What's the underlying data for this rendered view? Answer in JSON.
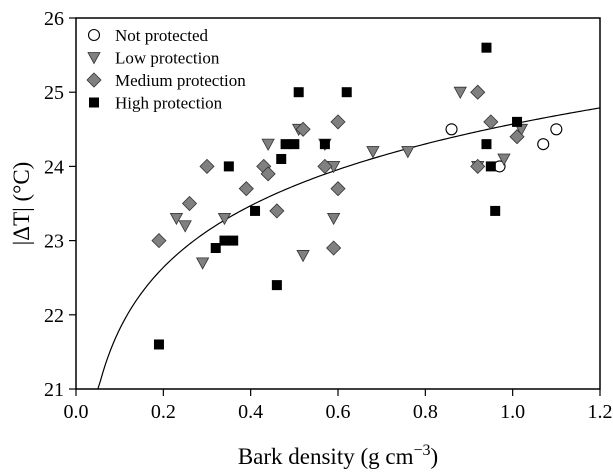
{
  "chart_data": {
    "type": "scatter",
    "xlabel_text": "Bark density (g cm",
    "xlabel_sup": "−3",
    "xlabel_close": ")",
    "ylabel": "|ΔT| (°C)",
    "xlim": [
      0.0,
      1.2
    ],
    "ylim": [
      21,
      26
    ],
    "xticks": [
      0.0,
      0.2,
      0.4,
      0.6,
      0.8,
      1.0,
      1.2
    ],
    "xtick_labels": [
      "0.0",
      "0.2",
      "0.4",
      "0.6",
      "0.8",
      "1.0",
      "1.2"
    ],
    "yticks": [
      21,
      22,
      23,
      24,
      25,
      26
    ],
    "ytick_labels": [
      "21",
      "22",
      "23",
      "24",
      "25",
      "26"
    ],
    "grid": false,
    "legend_position": "top-left",
    "series": [
      {
        "name": "Not protected",
        "marker": "open-circle",
        "color": "#000000",
        "points": [
          [
            0.86,
            24.5
          ],
          [
            0.97,
            24.0
          ],
          [
            1.07,
            24.3
          ],
          [
            1.1,
            24.5
          ]
        ]
      },
      {
        "name": "Low protection",
        "marker": "triangle-down",
        "color": "#808080",
        "points": [
          [
            0.23,
            23.3
          ],
          [
            0.25,
            23.2
          ],
          [
            0.29,
            22.7
          ],
          [
            0.34,
            23.3
          ],
          [
            0.44,
            24.3
          ],
          [
            0.51,
            24.5
          ],
          [
            0.52,
            22.8
          ],
          [
            0.57,
            24.3
          ],
          [
            0.59,
            23.3
          ],
          [
            0.59,
            24.0
          ],
          [
            0.68,
            24.2
          ],
          [
            0.76,
            24.2
          ],
          [
            0.88,
            25.0
          ],
          [
            0.92,
            24.0
          ],
          [
            0.98,
            24.1
          ],
          [
            1.02,
            24.5
          ]
        ]
      },
      {
        "name": "Medium protection",
        "marker": "diamond",
        "color": "#808080",
        "points": [
          [
            0.19,
            23.0
          ],
          [
            0.26,
            23.5
          ],
          [
            0.3,
            24.0
          ],
          [
            0.39,
            23.7
          ],
          [
            0.43,
            24.0
          ],
          [
            0.44,
            23.9
          ],
          [
            0.46,
            23.4
          ],
          [
            0.52,
            24.5
          ],
          [
            0.57,
            24.0
          ],
          [
            0.59,
            22.9
          ],
          [
            0.6,
            24.6
          ],
          [
            0.6,
            23.7
          ],
          [
            0.92,
            25.0
          ],
          [
            0.92,
            24.0
          ],
          [
            0.95,
            24.6
          ],
          [
            1.01,
            24.4
          ]
        ]
      },
      {
        "name": "High protection",
        "marker": "square",
        "color": "#000000",
        "points": [
          [
            0.19,
            21.6
          ],
          [
            0.32,
            22.9
          ],
          [
            0.34,
            23.0
          ],
          [
            0.35,
            24.0
          ],
          [
            0.36,
            23.0
          ],
          [
            0.41,
            23.4
          ],
          [
            0.46,
            22.4
          ],
          [
            0.47,
            24.1
          ],
          [
            0.48,
            24.3
          ],
          [
            0.5,
            24.3
          ],
          [
            0.51,
            25.0
          ],
          [
            0.57,
            24.3
          ],
          [
            0.62,
            25.0
          ],
          [
            0.94,
            25.6
          ],
          [
            0.94,
            24.3
          ],
          [
            0.95,
            24.0
          ],
          [
            0.96,
            23.4
          ],
          [
            1.01,
            24.6
          ]
        ]
      }
    ],
    "fit_curve": {
      "type": "logarithmic",
      "a": 24.57,
      "b": 1.2,
      "x_range": [
        0.05,
        1.2
      ]
    }
  }
}
